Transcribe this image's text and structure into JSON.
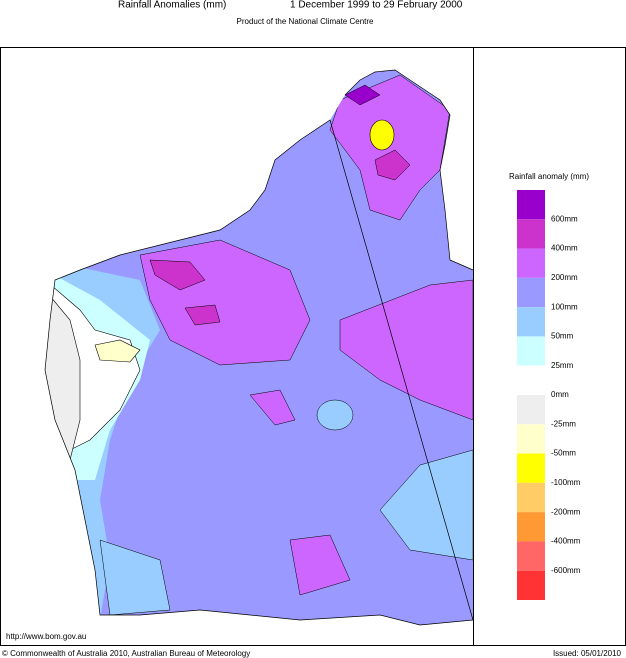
{
  "header": {
    "title": "Rainfall Anomalies (mm)",
    "period": "1 December 1999 to 29 February 2000",
    "subtitle": "Product of the National Climate Centre"
  },
  "legend": {
    "title": "Rainfall anomaly (mm)",
    "colors": [
      "#9900cc",
      "#cc33cc",
      "#cc66ff",
      "#9999ff",
      "#99ccff",
      "#ccffff",
      "#ffffff",
      "#eeeeee",
      "#ffffcc",
      "#ffff00",
      "#ffcc66",
      "#ff9933",
      "#ff6666",
      "#ff3333"
    ],
    "labels": [
      "600mm",
      "400mm",
      "200mm",
      "100mm",
      "50mm",
      "25mm",
      "0mm",
      "-25mm",
      "-50mm",
      "-100mm",
      "-200mm",
      "-400mm",
      "-600mm"
    ]
  },
  "footer": {
    "url": "http://www.bom.gov.au",
    "copyright": "© Commonwealth of Australia 2010, Australian Bureau of Meteorology",
    "issued": "Issued: 05/01/2010"
  }
}
